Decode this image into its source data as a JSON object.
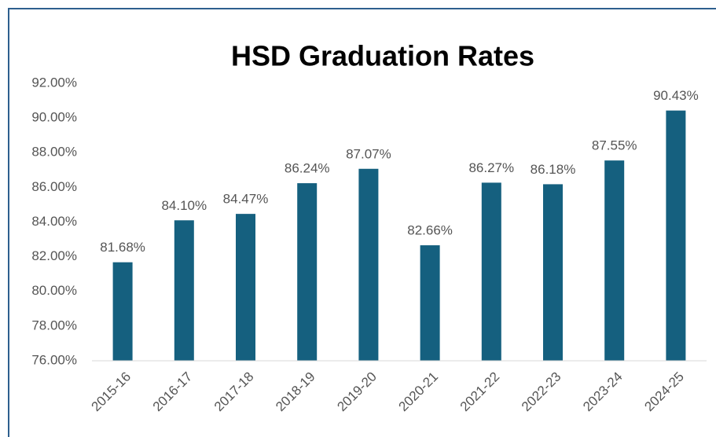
{
  "chart_data": {
    "type": "bar",
    "title": "HSD Graduation Rates",
    "categories": [
      "2015-16",
      "2016-17",
      "2017-18",
      "2018-19",
      "2019-20",
      "2020-21",
      "2021-22",
      "2022-23",
      "2023-24",
      "2024-25"
    ],
    "values": [
      81.68,
      84.1,
      84.47,
      86.24,
      87.07,
      82.66,
      86.27,
      86.18,
      87.55,
      90.43
    ],
    "value_labels": [
      "81.68%",
      "84.10%",
      "84.47%",
      "86.24%",
      "87.07%",
      "82.66%",
      "86.27%",
      "86.18%",
      "87.55%",
      "90.43%"
    ],
    "color": "#15607f",
    "ylim": [
      76,
      92
    ],
    "yticks": [
      {
        "value": 76,
        "label": "76.00%"
      },
      {
        "value": 78,
        "label": "78.00%"
      },
      {
        "value": 80,
        "label": "80.00%"
      },
      {
        "value": 82,
        "label": "82.00%"
      },
      {
        "value": 84,
        "label": "84.00%"
      },
      {
        "value": 86,
        "label": "86.00%"
      },
      {
        "value": 88,
        "label": "88.00%"
      },
      {
        "value": 90,
        "label": "90.00%"
      },
      {
        "value": 92,
        "label": "92.00%"
      }
    ],
    "grid": false
  }
}
